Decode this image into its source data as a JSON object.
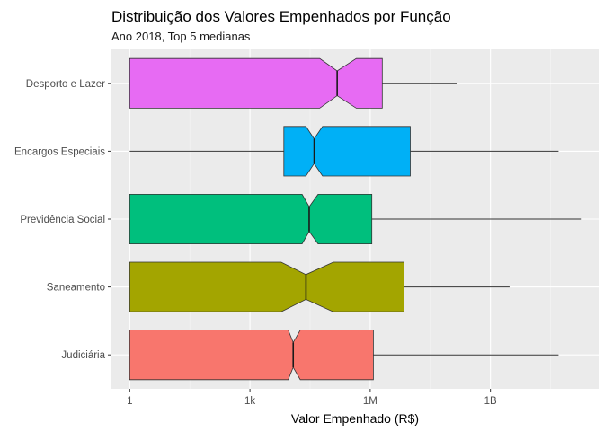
{
  "chart_data": {
    "type": "boxplot",
    "orientation": "horizontal",
    "notched": true,
    "title": "Distribuição dos Valores Empenhados por Função",
    "subtitle": "Ano 2018, Top 5 medianas",
    "xlabel": "Valor Empenhado (R$)",
    "ylabel": "",
    "x_scale": "log10",
    "xlim": [
      0.35,
      500000000000.0
    ],
    "x_ticks": [
      {
        "value": 1,
        "label": "1"
      },
      {
        "value": 1000,
        "label": "1k"
      },
      {
        "value": 1000000,
        "label": "1M"
      },
      {
        "value": 1000000000,
        "label": "1B"
      }
    ],
    "grid": true,
    "legend": "none",
    "categories": [
      "Desporto e Lazer",
      "Encargos Especiais",
      "Previdência Social",
      "Saneamento",
      "Judiciária"
    ],
    "boxes": [
      {
        "category": "Desporto e Lazer",
        "color": "#E76BF3",
        "min": 1,
        "q1": 1,
        "median": 150000,
        "q3": 2000000,
        "max": 150000000,
        "notch_low": 55000,
        "notch_high": 450000
      },
      {
        "category": "Encargos Especiais",
        "color": "#00B0F6",
        "min": 1,
        "q1": 7000,
        "median": 40000,
        "q3": 10000000,
        "max": 50000000000,
        "notch_low": 25000,
        "notch_high": 65000
      },
      {
        "category": "Previdência Social",
        "color": "#00BF7D",
        "min": 1,
        "q1": 1,
        "median": 30000,
        "q3": 1100000,
        "max": 180000000000,
        "notch_low": 20000,
        "notch_high": 50000
      },
      {
        "category": "Saneamento",
        "color": "#A3A500",
        "min": 1,
        "q1": 1,
        "median": 25000,
        "q3": 7000000,
        "max": 3000000000,
        "notch_low": 6000,
        "notch_high": 120000
      },
      {
        "category": "Judiciária",
        "color": "#F8766D",
        "min": 1,
        "q1": 1,
        "median": 12000,
        "q3": 1200000,
        "max": 50000000000,
        "notch_low": 9000,
        "notch_high": 18000
      }
    ],
    "colors": {
      "panel_bg": "#EBEBEB",
      "grid_major": "#FFFFFF",
      "grid_minor": "#F5F5F5",
      "outline": "#333333",
      "tick_text": "#4D4D4D"
    }
  }
}
